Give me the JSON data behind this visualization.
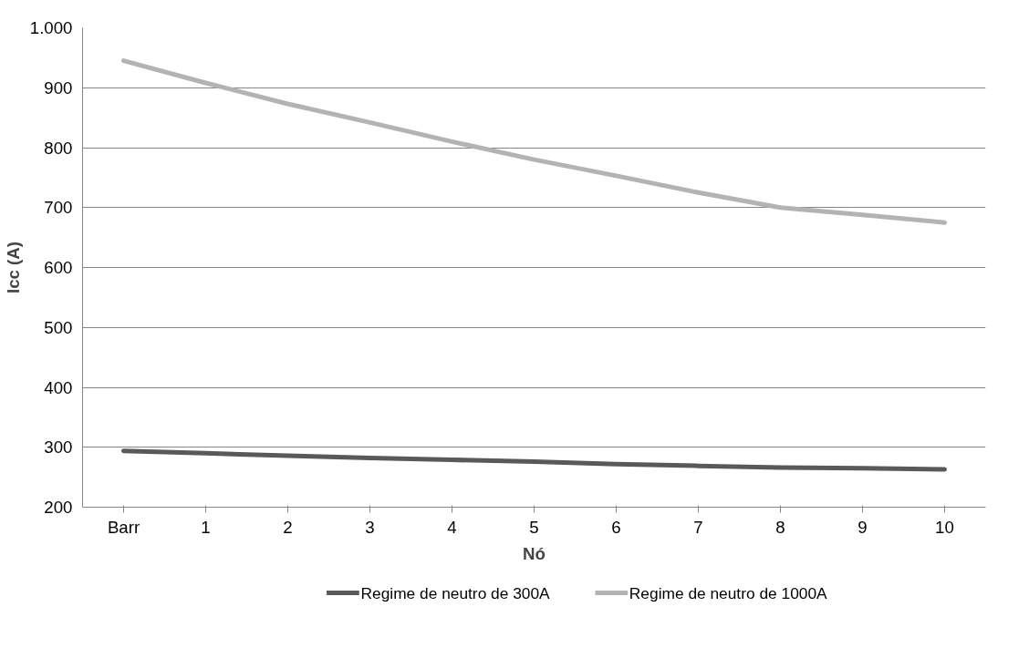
{
  "chart_data": {
    "type": "line",
    "xlabel": "Nó",
    "ylabel": "Icc (A)",
    "categories": [
      "Barr",
      "1",
      "2",
      "3",
      "4",
      "5",
      "6",
      "7",
      "8",
      "9",
      "10"
    ],
    "series": [
      {
        "name": "Regime de neutro de 300A",
        "color": "#595959",
        "values": [
          294,
          290,
          286,
          282,
          279,
          276,
          272,
          269,
          266,
          265,
          263
        ]
      },
      {
        "name": "Regime de neutro de 1000A",
        "color": "#b3b3b3",
        "values": [
          945,
          908,
          873,
          842,
          810,
          780,
          753,
          725,
          700,
          688,
          675
        ]
      }
    ],
    "ylim": [
      200,
      1000
    ],
    "yticks": [
      200,
      300,
      400,
      500,
      600,
      700,
      800,
      900,
      {
        "value": 1000,
        "label": "1.000"
      }
    ],
    "grid": "y",
    "legend": "bottom",
    "marker": "none",
    "line_style": "solid"
  }
}
